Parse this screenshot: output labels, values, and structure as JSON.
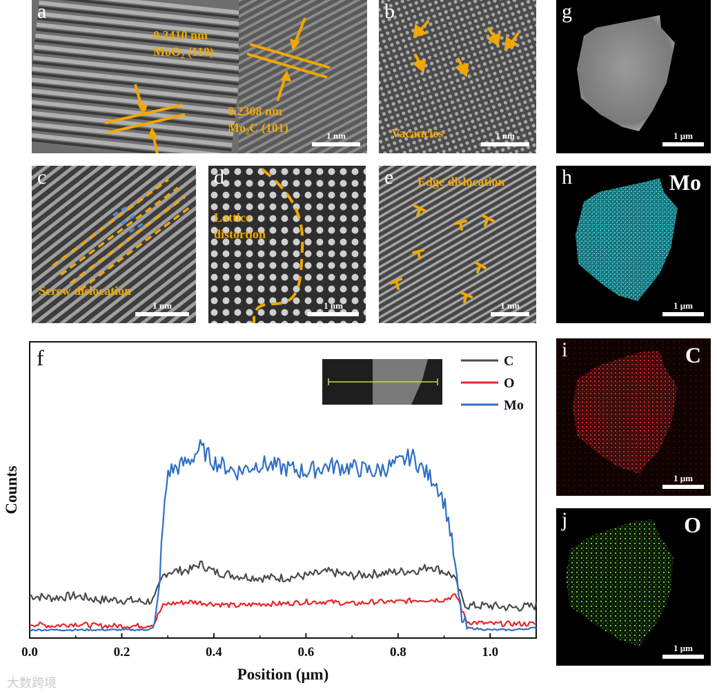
{
  "panels": {
    "a": {
      "label": "a",
      "scale": "1 nm",
      "ann1": "0.3410 nm",
      "ann2": "MoO₂ (110)",
      "ann3": "0.2308 nm",
      "ann4": "Mo₂C (101)"
    },
    "b": {
      "label": "b",
      "scale": "1 nm",
      "ann": "Vacancies"
    },
    "c": {
      "label": "c",
      "scale": "1 nm",
      "ann": "Screw dislocation"
    },
    "d": {
      "label": "d",
      "scale": "1 nm",
      "ann1": "Lattice",
      "ann2": "distortion"
    },
    "e": {
      "label": "e",
      "scale": "1 nm",
      "ann": "Edge dislocation"
    },
    "g": {
      "label": "g",
      "scale": "1 μm"
    },
    "h": {
      "label": "h",
      "scale": "1 μm",
      "element": "Mo"
    },
    "i": {
      "label": "i",
      "scale": "1 μm",
      "element": "C"
    },
    "j": {
      "label": "j",
      "scale": "1 μm",
      "element": "O"
    },
    "f": {
      "label": "f"
    }
  },
  "colors": {
    "annotation": "#f0a800",
    "C": "#4a4a4a",
    "O": "#e8262b",
    "Mo": "#2f6fc4",
    "Mo_map": "#34c6cf",
    "C_map": "#d42a2a",
    "O_map": "#6fcf3a"
  },
  "watermark": "大数跨境",
  "chart_data": {
    "type": "line",
    "xlabel": "Position (μm)",
    "ylabel": "Counts",
    "xlim": [
      0.0,
      1.1
    ],
    "ylim": [
      0,
      100
    ],
    "xticks": [
      "0.0",
      "0.2",
      "0.4",
      "0.6",
      "0.8",
      "1.0"
    ],
    "yticks_shown": false,
    "legend_position": "top-right",
    "series": [
      {
        "name": "C",
        "color": "#4a4a4a",
        "x": [
          0.0,
          0.05,
          0.1,
          0.15,
          0.2,
          0.25,
          0.27,
          0.28,
          0.29,
          0.3,
          0.35,
          0.37,
          0.4,
          0.45,
          0.5,
          0.55,
          0.6,
          0.65,
          0.7,
          0.75,
          0.8,
          0.85,
          0.87,
          0.9,
          0.92,
          0.93,
          0.94,
          0.95,
          1.0,
          1.05,
          1.1
        ],
        "y": [
          18,
          17,
          18,
          16,
          16,
          15,
          16,
          22,
          28,
          30,
          31,
          34,
          30,
          28,
          27,
          27,
          28,
          30,
          28,
          29,
          30,
          31,
          33,
          30,
          28,
          22,
          16,
          13,
          13,
          12,
          13
        ]
      },
      {
        "name": "O",
        "color": "#e8262b",
        "x": [
          0.0,
          0.05,
          0.1,
          0.15,
          0.2,
          0.25,
          0.27,
          0.28,
          0.29,
          0.3,
          0.35,
          0.4,
          0.45,
          0.5,
          0.55,
          0.6,
          0.65,
          0.7,
          0.75,
          0.8,
          0.85,
          0.9,
          0.92,
          0.93,
          0.94,
          0.95,
          1.0,
          1.05,
          1.1
        ],
        "y": [
          4,
          3,
          4,
          3,
          3,
          3,
          4,
          9,
          13,
          14,
          15,
          14,
          13,
          14,
          14,
          15,
          15,
          14,
          15,
          15,
          16,
          16,
          18,
          17,
          10,
          5,
          4,
          4,
          4
        ]
      },
      {
        "name": "Mo",
        "color": "#2f6fc4",
        "x": [
          0.0,
          0.05,
          0.1,
          0.15,
          0.2,
          0.25,
          0.27,
          0.28,
          0.29,
          0.3,
          0.32,
          0.35,
          0.37,
          0.4,
          0.45,
          0.5,
          0.55,
          0.6,
          0.65,
          0.7,
          0.75,
          0.8,
          0.83,
          0.85,
          0.87,
          0.88,
          0.9,
          0.91,
          0.92,
          0.93,
          0.94,
          0.95,
          1.0,
          1.05,
          1.1
        ],
        "y": [
          1,
          1,
          1,
          1,
          1,
          1,
          2,
          20,
          55,
          80,
          82,
          86,
          92,
          85,
          80,
          84,
          82,
          80,
          83,
          82,
          80,
          84,
          88,
          82,
          77,
          76,
          65,
          55,
          40,
          20,
          5,
          2,
          1,
          1,
          2
        ]
      }
    ]
  }
}
